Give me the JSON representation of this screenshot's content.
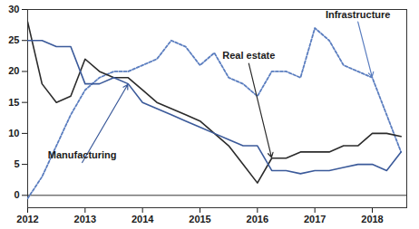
{
  "chart_data": {
    "type": "line",
    "x": [
      2012,
      2012.25,
      2012.5,
      2012.75,
      2013,
      2013.25,
      2013.5,
      2013.75,
      2014,
      2014.25,
      2014.5,
      2014.75,
      2015,
      2015.25,
      2015.5,
      2015.75,
      2016,
      2016.25,
      2016.5,
      2016.75,
      2017,
      2017.25,
      2017.5,
      2017.75,
      2018,
      2018.25,
      2018.5
    ],
    "series": [
      {
        "name": "Infrastructure",
        "color": "#5a7dbf",
        "line_style": "dashed",
        "values": [
          -0.5,
          3,
          8,
          13,
          17,
          19,
          20,
          20,
          21,
          22,
          25,
          24,
          21,
          23,
          19,
          18,
          16,
          20,
          20,
          19,
          27,
          25,
          21,
          20,
          19,
          13,
          7
        ]
      },
      {
        "name": "Real estate",
        "color": "#2b2b2b",
        "line_style": "solid",
        "values": [
          28,
          18,
          15,
          16,
          22,
          20,
          19,
          19,
          17,
          15,
          14,
          13,
          12,
          10,
          8,
          5,
          2,
          6,
          6,
          7,
          7,
          7,
          8,
          8,
          10,
          10,
          9.5
        ]
      },
      {
        "name": "Manufacturing",
        "color": "#3b5a9a",
        "line_style": "solid",
        "values": [
          25,
          25,
          24,
          24,
          18,
          18,
          19,
          18,
          15,
          14,
          13,
          12,
          11,
          10,
          9,
          8,
          8,
          4,
          4,
          3.5,
          4,
          4,
          4.5,
          5,
          5,
          4,
          7
        ]
      }
    ],
    "xlim": [
      2012,
      2018.6
    ],
    "xticks": [
      2012,
      2013,
      2014,
      2015,
      2016,
      2017,
      2018
    ],
    "ylim": [
      -2,
      30
    ],
    "yticks": [
      0,
      5,
      10,
      15,
      20,
      25,
      30
    ],
    "grid": false
  }
}
